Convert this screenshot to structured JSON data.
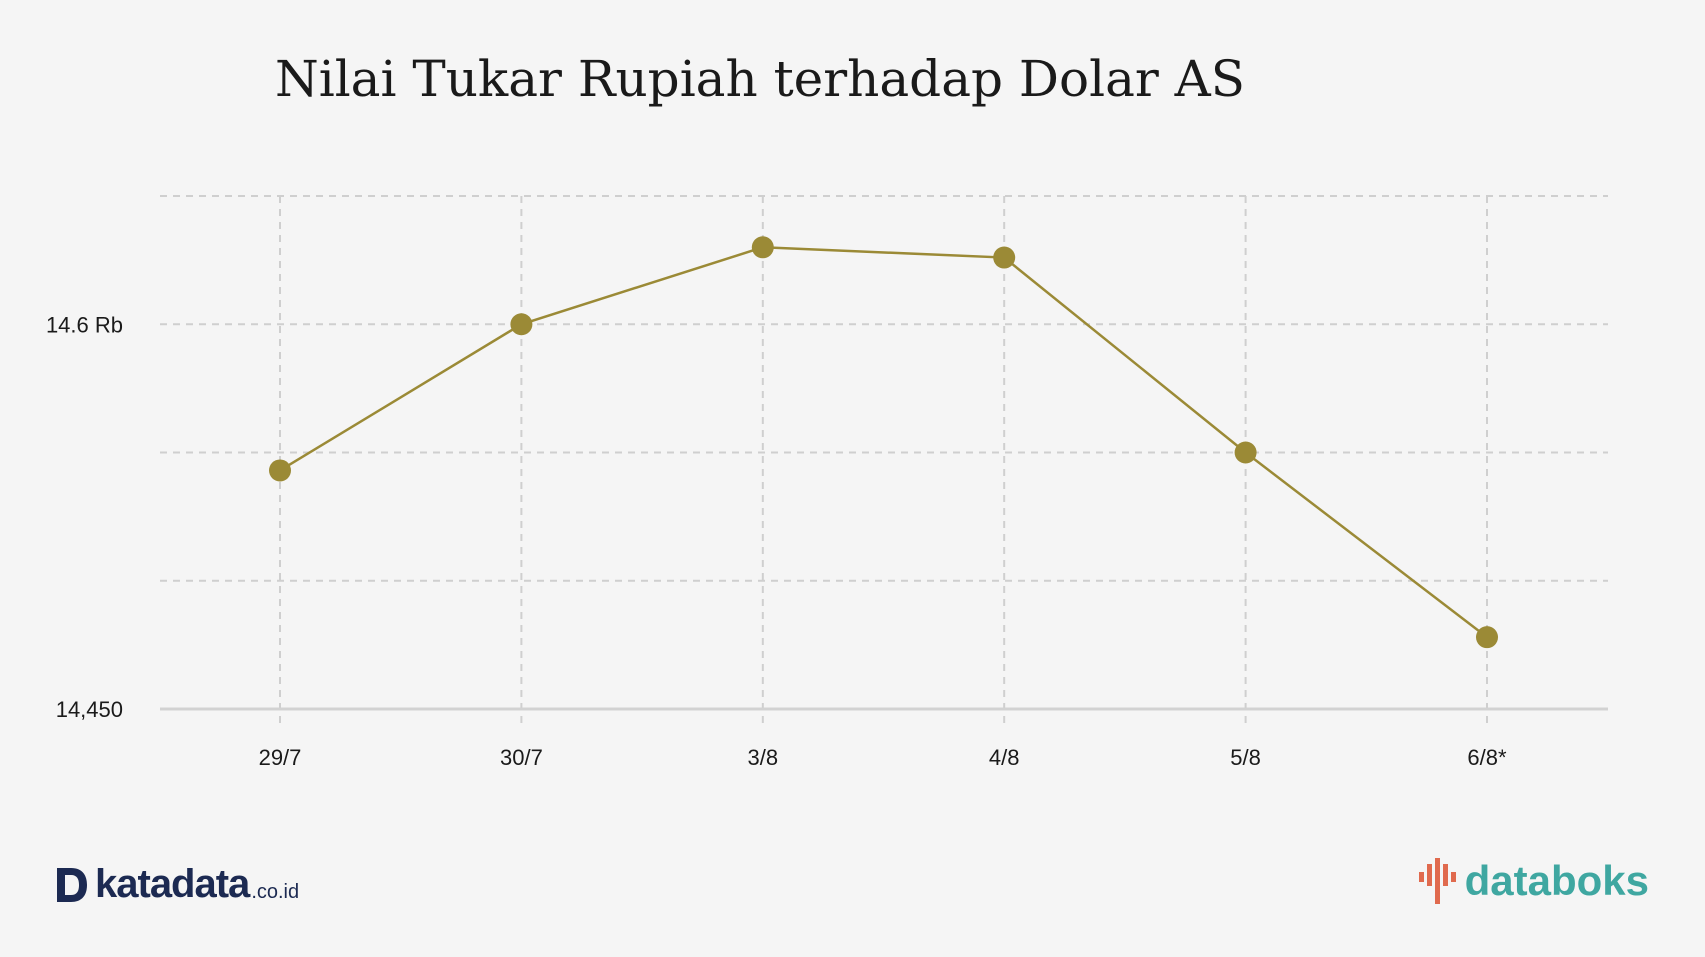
{
  "chart_data": {
    "type": "line",
    "title": "Nilai Tukar Rupiah terhadap Dolar AS",
    "categories": [
      "29/7",
      "30/7",
      "3/8",
      "4/8",
      "5/8",
      "6/8*"
    ],
    "series": [
      {
        "values": [
          14543,
          14600,
          14630,
          14626,
          14550,
          14478
        ]
      }
    ],
    "ylim": [
      14450,
      14650
    ],
    "yticks": [
      14450,
      14500,
      14550,
      14600,
      14650
    ],
    "ytick_labels": [
      {
        "value": 14600,
        "label": "14.6 Rb"
      },
      {
        "value": 14450,
        "label": "14,450"
      }
    ],
    "grid": true,
    "color": "#9b8a36"
  },
  "logos": {
    "left": {
      "text": "katadata",
      "suffix": ".co.id"
    },
    "right": {
      "text": "databoks"
    }
  }
}
